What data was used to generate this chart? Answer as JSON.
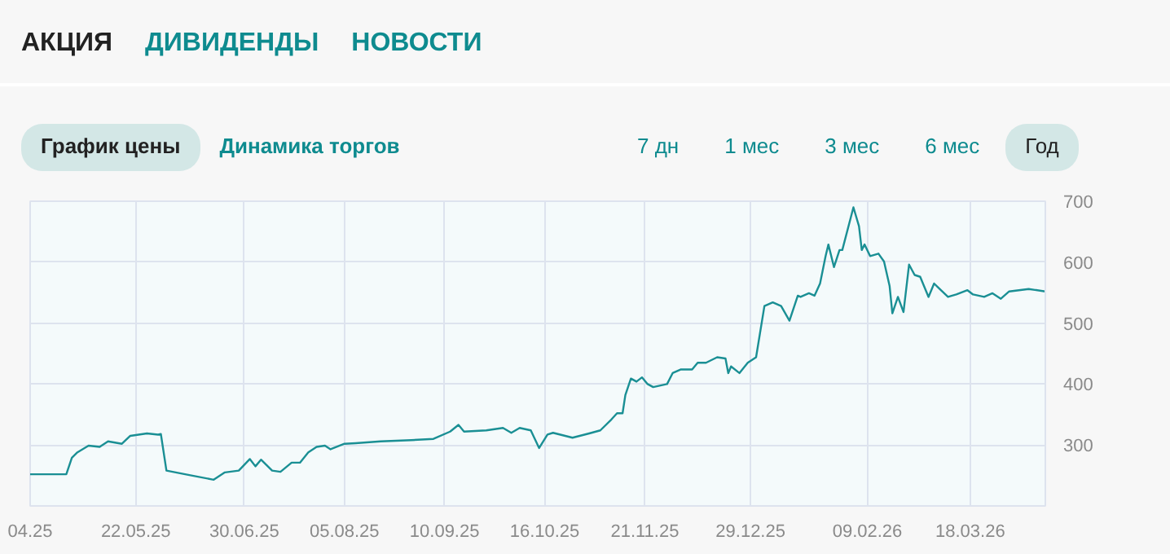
{
  "chart_data": {
    "type": "line",
    "annotations": [
      "АКЦИЯ",
      "ДИВИДЕНДЫ",
      "НОВОСТИ",
      "График цены",
      "Динамика торгов",
      "7 дн",
      "1 мес",
      "3 мес",
      "6 мес",
      "Год"
    ],
    "x": [
      "2025-04-14",
      "2025-04-27",
      "2025-04-29",
      "2025-05-01",
      "2025-05-05",
      "2025-05-09",
      "2025-05-12",
      "2025-05-17",
      "2025-05-20",
      "2025-05-26",
      "2025-05-30",
      "2025-05-31",
      "2025-06-02",
      "2025-06-11",
      "2025-06-19",
      "2025-06-23",
      "2025-06-28",
      "2025-07-02",
      "2025-07-04",
      "2025-07-06",
      "2025-07-10",
      "2025-07-13",
      "2025-07-17",
      "2025-07-20",
      "2025-07-23",
      "2025-07-26",
      "2025-07-29",
      "2025-07-31",
      "2025-08-05",
      "2025-08-09",
      "2025-08-18",
      "2025-08-29",
      "2025-09-06",
      "2025-09-12",
      "2025-09-15",
      "2025-09-17",
      "2025-09-25",
      "2025-10-01",
      "2025-10-04",
      "2025-10-07",
      "2025-10-11",
      "2025-10-14",
      "2025-10-17",
      "2025-10-19",
      "2025-10-26",
      "2025-11-01",
      "2025-11-05",
      "2025-11-09",
      "2025-11-11",
      "2025-11-13",
      "2025-11-14",
      "2025-11-16",
      "2025-11-18",
      "2025-11-20",
      "2025-11-22",
      "2025-11-24",
      "2025-11-29",
      "2025-12-01",
      "2025-12-04",
      "2025-12-08",
      "2025-12-10",
      "2025-12-13",
      "2025-12-17",
      "2025-12-20",
      "2025-12-21",
      "2025-12-22",
      "2025-12-25",
      "2025-12-28",
      "2025-12-31",
      "2026-01-03",
      "2026-01-06",
      "2026-01-09",
      "2026-01-12",
      "2026-01-15",
      "2026-01-16",
      "2026-01-19",
      "2026-01-21",
      "2026-01-23",
      "2026-01-25",
      "2026-01-26",
      "2026-01-28",
      "2026-01-30",
      "2026-01-31",
      "2026-02-04",
      "2026-02-06",
      "2026-02-07",
      "2026-02-08",
      "2026-02-10",
      "2026-02-13",
      "2026-02-15",
      "2026-02-17",
      "2026-02-18",
      "2026-02-20",
      "2026-02-22",
      "2026-02-24",
      "2026-02-26",
      "2026-02-28",
      "2026-03-03",
      "2026-03-05",
      "2026-03-07",
      "2026-03-10",
      "2026-03-13",
      "2026-03-17",
      "2026-03-19",
      "2026-03-23",
      "2026-03-26",
      "2026-03-29",
      "2026-04-01",
      "2026-04-08",
      "2026-04-14"
    ],
    "series": [
      {
        "color": "#1a8f94",
        "values": [
          252,
          252,
          279,
          288,
          299,
          297,
          306,
          302,
          315,
          319,
          317,
          318,
          258,
          250,
          243,
          255,
          258,
          277,
          265,
          276,
          258,
          256,
          271,
          271,
          288,
          297,
          299,
          293,
          302,
          303,
          306,
          308,
          310,
          322,
          333,
          322,
          324,
          328,
          320,
          328,
          324,
          295,
          317,
          320,
          312,
          319,
          324,
          342,
          352,
          352,
          382,
          409,
          404,
          411,
          400,
          395,
          400,
          418,
          424,
          424,
          435,
          435,
          444,
          442,
          418,
          429,
          418,
          435,
          444,
          528,
          534,
          528,
          504,
          545,
          543,
          549,
          545,
          565,
          610,
          629,
          592,
          620,
          620,
          690,
          659,
          620,
          629,
          610,
          614,
          601,
          561,
          516,
          543,
          518,
          596,
          579,
          576,
          543,
          565,
          556,
          543,
          547,
          554,
          547,
          543,
          549,
          540,
          552,
          556,
          552
        ]
      }
    ],
    "xlim": [
      "2025-04-14",
      "2026-04-14"
    ],
    "xticks": [
      {
        "value": "2025-04-14",
        "label": "04.25"
      },
      {
        "value": "2025-05-22",
        "label": "22.05.25"
      },
      {
        "value": "2025-06-30",
        "label": "30.06.25"
      },
      {
        "value": "2025-08-05",
        "label": "05.08.25"
      },
      {
        "value": "2025-09-10",
        "label": "10.09.25"
      },
      {
        "value": "2025-10-16",
        "label": "16.10.25"
      },
      {
        "value": "2025-11-21",
        "label": "21.11.25"
      },
      {
        "value": "2025-12-29",
        "label": "29.12.25"
      },
      {
        "value": "2026-02-09",
        "label": "09.02.26"
      },
      {
        "value": "2026-03-18",
        "label": "18.03.26"
      }
    ],
    "ylim": [
      200,
      700
    ],
    "yticks": [
      300,
      400,
      500,
      600,
      700
    ],
    "grid": true,
    "marker": "none",
    "line_style": "solid"
  }
}
